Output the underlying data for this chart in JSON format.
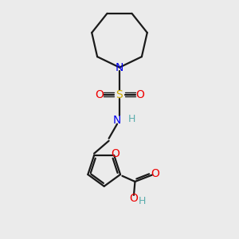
{
  "bg_color": "#ebebeb",
  "bond_color": "#1a1a1a",
  "N_color": "#0000ee",
  "O_color": "#ee0000",
  "S_color": "#ccaa00",
  "H_color": "#5aadad",
  "figsize": [
    3.0,
    3.0
  ],
  "dpi": 100,
  "xlim": [
    0,
    10
  ],
  "ylim": [
    0,
    10
  ]
}
